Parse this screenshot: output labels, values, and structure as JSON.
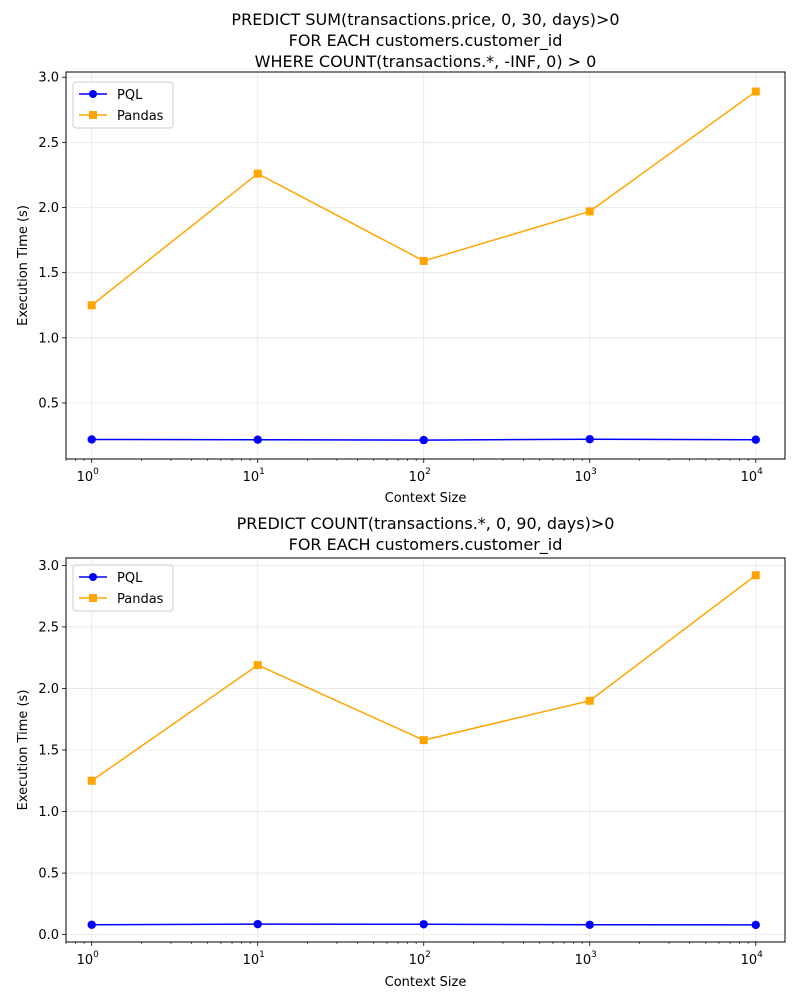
{
  "chart_data": [
    {
      "type": "line",
      "title_lines": [
        "PREDICT SUM(transactions.price, 0, 30, days)>0",
        "FOR EACH customers.customer_id",
        "WHERE COUNT(transactions.*, -INF, 0) > 0"
      ],
      "xlabel": "Context Size",
      "ylabel": "Execution Time (s)",
      "xscale": "log",
      "x": [
        1,
        10,
        100,
        1000,
        10000
      ],
      "xlim": [
        0.7,
        15000
      ],
      "ylim": [
        0.07,
        3.04
      ],
      "yticks": [
        0.5,
        1.0,
        1.5,
        2.0,
        2.5,
        3.0
      ],
      "ytick_labels": [
        "0.5",
        "1.0",
        "1.5",
        "2.0",
        "2.5",
        "3.0"
      ],
      "grid": true,
      "legend_position": "top-left",
      "series": [
        {
          "name": "PQL",
          "color": "#0000ff",
          "marker": "circle",
          "values": [
            0.22,
            0.218,
            0.215,
            0.222,
            0.218
          ]
        },
        {
          "name": "Pandas",
          "color": "#ffa500",
          "marker": "square",
          "values": [
            1.25,
            2.26,
            1.59,
            1.97,
            2.89
          ]
        }
      ]
    },
    {
      "type": "line",
      "title_lines": [
        "PREDICT COUNT(transactions.*, 0, 90, days)>0",
        "FOR EACH customers.customer_id"
      ],
      "xlabel": "Context Size",
      "ylabel": "Execution Time (s)",
      "xscale": "log",
      "x": [
        1,
        10,
        100,
        1000,
        10000
      ],
      "xlim": [
        0.7,
        15000
      ],
      "ylim": [
        -0.06,
        3.06
      ],
      "yticks": [
        0.0,
        0.5,
        1.0,
        1.5,
        2.0,
        2.5,
        3.0
      ],
      "ytick_labels": [
        "0.0",
        "0.5",
        "1.0",
        "1.5",
        "2.0",
        "2.5",
        "3.0"
      ],
      "grid": true,
      "legend_position": "top-left",
      "series": [
        {
          "name": "PQL",
          "color": "#0000ff",
          "marker": "circle",
          "values": [
            0.08,
            0.085,
            0.084,
            0.08,
            0.079
          ]
        },
        {
          "name": "Pandas",
          "color": "#ffa500",
          "marker": "square",
          "values": [
            1.25,
            2.19,
            1.58,
            1.9,
            2.92
          ]
        }
      ]
    }
  ]
}
